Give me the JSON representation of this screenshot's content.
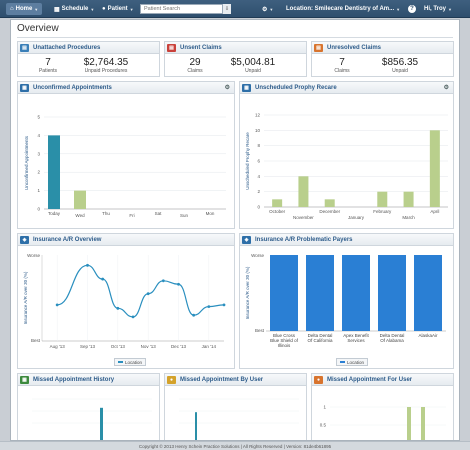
{
  "nav": {
    "home": "Home",
    "schedule": "Schedule",
    "patient": "Patient",
    "search_placeholder": "Patient Search",
    "location": "Location: Smilecare Dentistry of Am...",
    "help": "?",
    "user": "Hi, Troy"
  },
  "page": {
    "title": "Overview"
  },
  "summary": {
    "unattached": {
      "title": "Unattached Procedures",
      "patients": "7",
      "patients_label": "Patients",
      "amount": "$2,764.35",
      "amount_label": "Unpaid Procedures"
    },
    "unsent": {
      "title": "Unsent Claims",
      "claims": "29",
      "claims_label": "Claims",
      "amount": "$5,004.81",
      "amount_label": "Unpaid"
    },
    "unresolved": {
      "title": "Unresolved Claims",
      "claims": "7",
      "claims_label": "Claims",
      "amount": "$856.35",
      "amount_label": "Unpaid"
    }
  },
  "cards": {
    "unconfirmed": "Unconfirmed Appointments",
    "prophy": "Unscheduled Prophy Recare",
    "ar_overview": "Insurance A/R Overview",
    "ar_payers": "Insurance A/R Problematic Payers",
    "missed_history": "Missed Appointment History",
    "missed_by_user": "Missed Appointment By User",
    "missed_for_user": "Missed Appointment For User"
  },
  "colors": {
    "teal": "#2a8fa8",
    "green": "#b9cf8c",
    "blue": "#2a7fd4",
    "line": "#2a8fbf",
    "nav": "#2f4f6e"
  },
  "chart_data": [
    {
      "type": "bar",
      "ylabel": "Unconfirmed Appointments",
      "categories": [
        "Today",
        "Wed",
        "Thu",
        "Fri",
        "Sat",
        "Sun",
        "Mon"
      ],
      "values": [
        4,
        1,
        0,
        0,
        0,
        0,
        0
      ],
      "ylim": [
        0,
        5
      ],
      "yticks": [
        "0",
        "1",
        "2",
        "3",
        "4",
        "5"
      ],
      "highlight_first": true
    },
    {
      "type": "bar",
      "ylabel": "Unscheduled Prophy Recare",
      "categories": [
        "October",
        "November",
        "December",
        "January",
        "February",
        "March",
        "April"
      ],
      "values": [
        1,
        4,
        1,
        0,
        2,
        2,
        10
      ],
      "ylim": [
        0,
        12
      ],
      "yticks": [
        "0",
        "2",
        "4",
        "6",
        "8",
        "10",
        "12"
      ],
      "odd_labels": [
        "October",
        "December",
        "February",
        "April"
      ],
      "even_labels": [
        "November",
        "January",
        "March"
      ]
    },
    {
      "type": "line",
      "ylabel": "Insurance A/R over 30 (%)",
      "categories": [
        "Aug '13",
        "Sep '13",
        "Oct '13",
        "Nov '13",
        "Dec '13",
        "Jan '14"
      ],
      "x": [
        0,
        1,
        1.5,
        2,
        2.5,
        3,
        3.5,
        4,
        4.5,
        5,
        5.5
      ],
      "values": [
        0.42,
        0.88,
        0.72,
        0.38,
        0.28,
        0.55,
        0.7,
        0.66,
        0.3,
        0.4,
        0.42
      ],
      "ytick_top": "Worse",
      "ytick_bottom": "Best",
      "legend": "Location"
    },
    {
      "type": "bar",
      "ylabel": "Insurance A/R over 30 (%)",
      "categories": [
        "Blue Cross Blue Shield of Illinois",
        "Delta Dental Of California",
        "Apex Benefit Services",
        "Delta Dental Of Alabama",
        "AlaskaAir"
      ],
      "category_lines": [
        [
          "Blue Cross",
          "Blue Shield of",
          "Illinois"
        ],
        [
          "Delta Dental",
          "Of California"
        ],
        [
          "Apex Benefit",
          "Services"
        ],
        [
          "Delta Dental",
          "Of Alabama"
        ],
        [
          "AlaskaAir"
        ]
      ],
      "values": [
        1,
        1,
        1,
        1,
        1
      ],
      "ytick_top": "Worse",
      "ytick_bottom": "Best",
      "legend": "Location"
    },
    {
      "type": "bar",
      "yticks": [],
      "values": [
        0.8
      ]
    },
    {
      "type": "bar",
      "yticks": [],
      "values": [
        0.7
      ]
    },
    {
      "type": "bar",
      "yticks": [
        "1",
        "0.5"
      ],
      "values": [
        1,
        1
      ]
    }
  ],
  "footer": {
    "text": "Copyright © 2013 Henry Schein Practice Solutions | All Rights Reserved | Version: 81de4b61895"
  }
}
